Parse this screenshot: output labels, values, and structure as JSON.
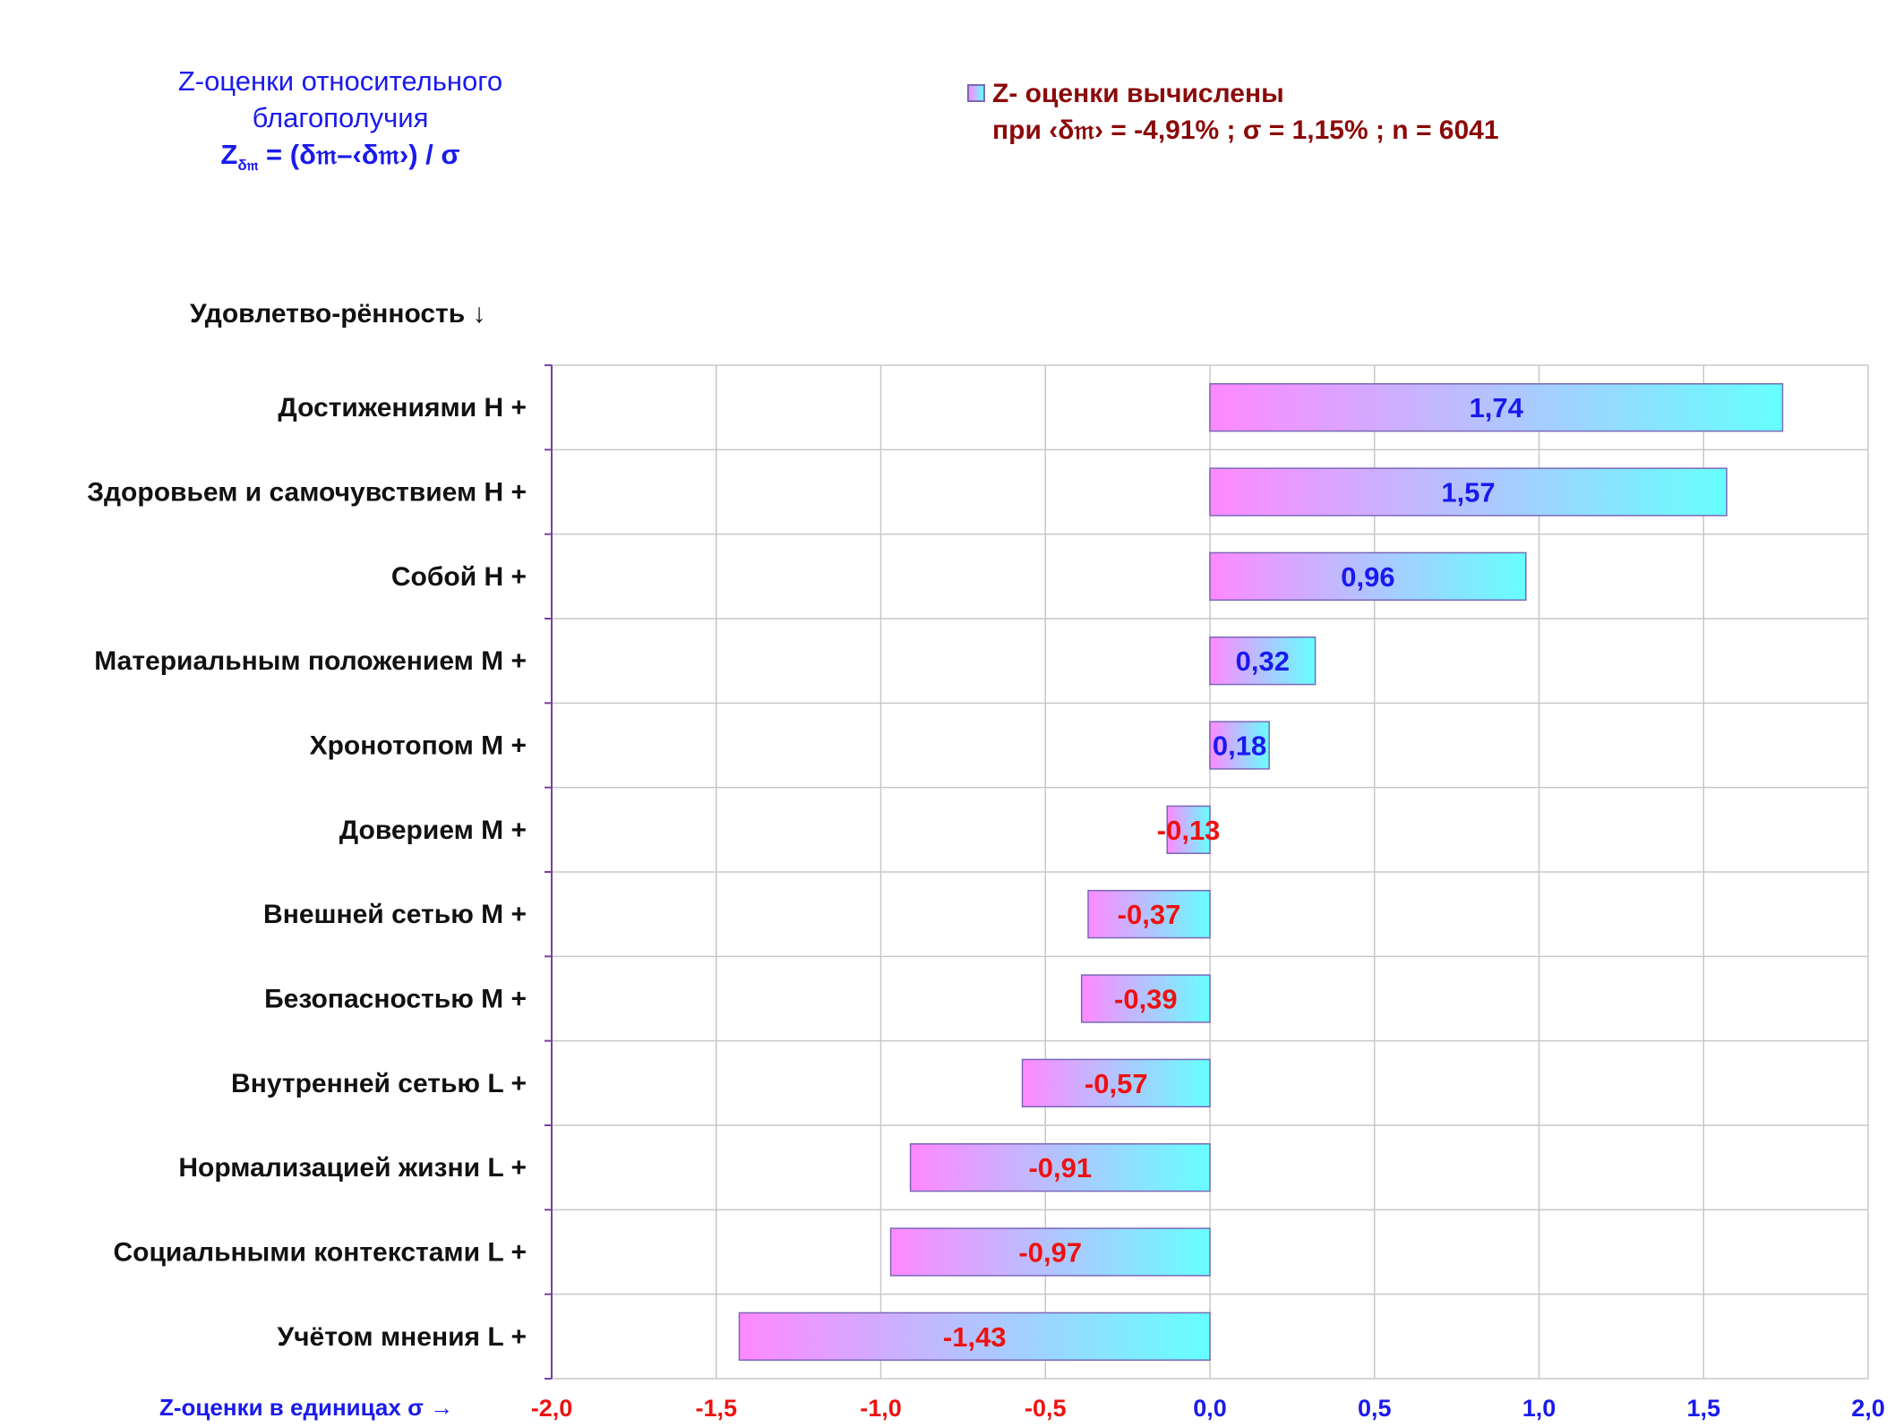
{
  "title": {
    "line1": "Z-оценки  относительного",
    "line2": "благополучия",
    "formula_z": "Z",
    "formula_sub": "δ𝔪",
    "formula_rest": " = (δ𝔪–‹δ𝔪›)  / σ"
  },
  "legend": {
    "line1": "Z- оценки вычислены",
    "line2": "при ‹δ𝔪› = -4,91% ; σ = 1,15% ; n = 6041"
  },
  "colors": {
    "bar_start": "#ff88ff",
    "bar_end": "#66ffff",
    "positive_label": "#1a1aee",
    "negative_label": "#ee1111",
    "axis": "#7a3fa0",
    "grid": "#c8c8c8"
  },
  "chart_data": {
    "type": "bar",
    "orientation": "horizontal",
    "category_axis_title": "Удовлетво-рённость ↓",
    "value_axis_title": "Z-оценки в единицах σ →",
    "xlim": [
      -2.0,
      2.0
    ],
    "ticks": [
      -2.0,
      -1.5,
      -1.0,
      -0.5,
      0.0,
      0.5,
      1.0,
      1.5,
      2.0
    ],
    "tick_labels": [
      "-2,0",
      "-1,5",
      "-1,0",
      "-0,5",
      "0,0",
      "0,5",
      "1,0",
      "1,5",
      "2,0"
    ],
    "grid": true,
    "categories": [
      "Достижениями  Н +",
      "Здоровьем и самочувствием  Н +",
      "Собой  Н +",
      "Материальным положением  М +",
      "Хронотопом  М +",
      "Доверием  М +",
      "Внешней сетью  М +",
      "Безопасностью  М +",
      "Внутренней сетью  L +",
      "Нормализацией жизни  L +",
      "Социальными контекстами  L +",
      "Учётом мнения  L +"
    ],
    "values": [
      1.74,
      1.57,
      0.96,
      0.32,
      0.18,
      -0.13,
      -0.37,
      -0.39,
      -0.57,
      -0.91,
      -0.97,
      -1.43
    ],
    "value_labels": [
      "1,74",
      "1,57",
      "0,96",
      "0,32",
      "0,18",
      "-0,13",
      "-0,37",
      "-0,39",
      "-0,57",
      "-0,91",
      "-0,97",
      "-1,43"
    ]
  }
}
